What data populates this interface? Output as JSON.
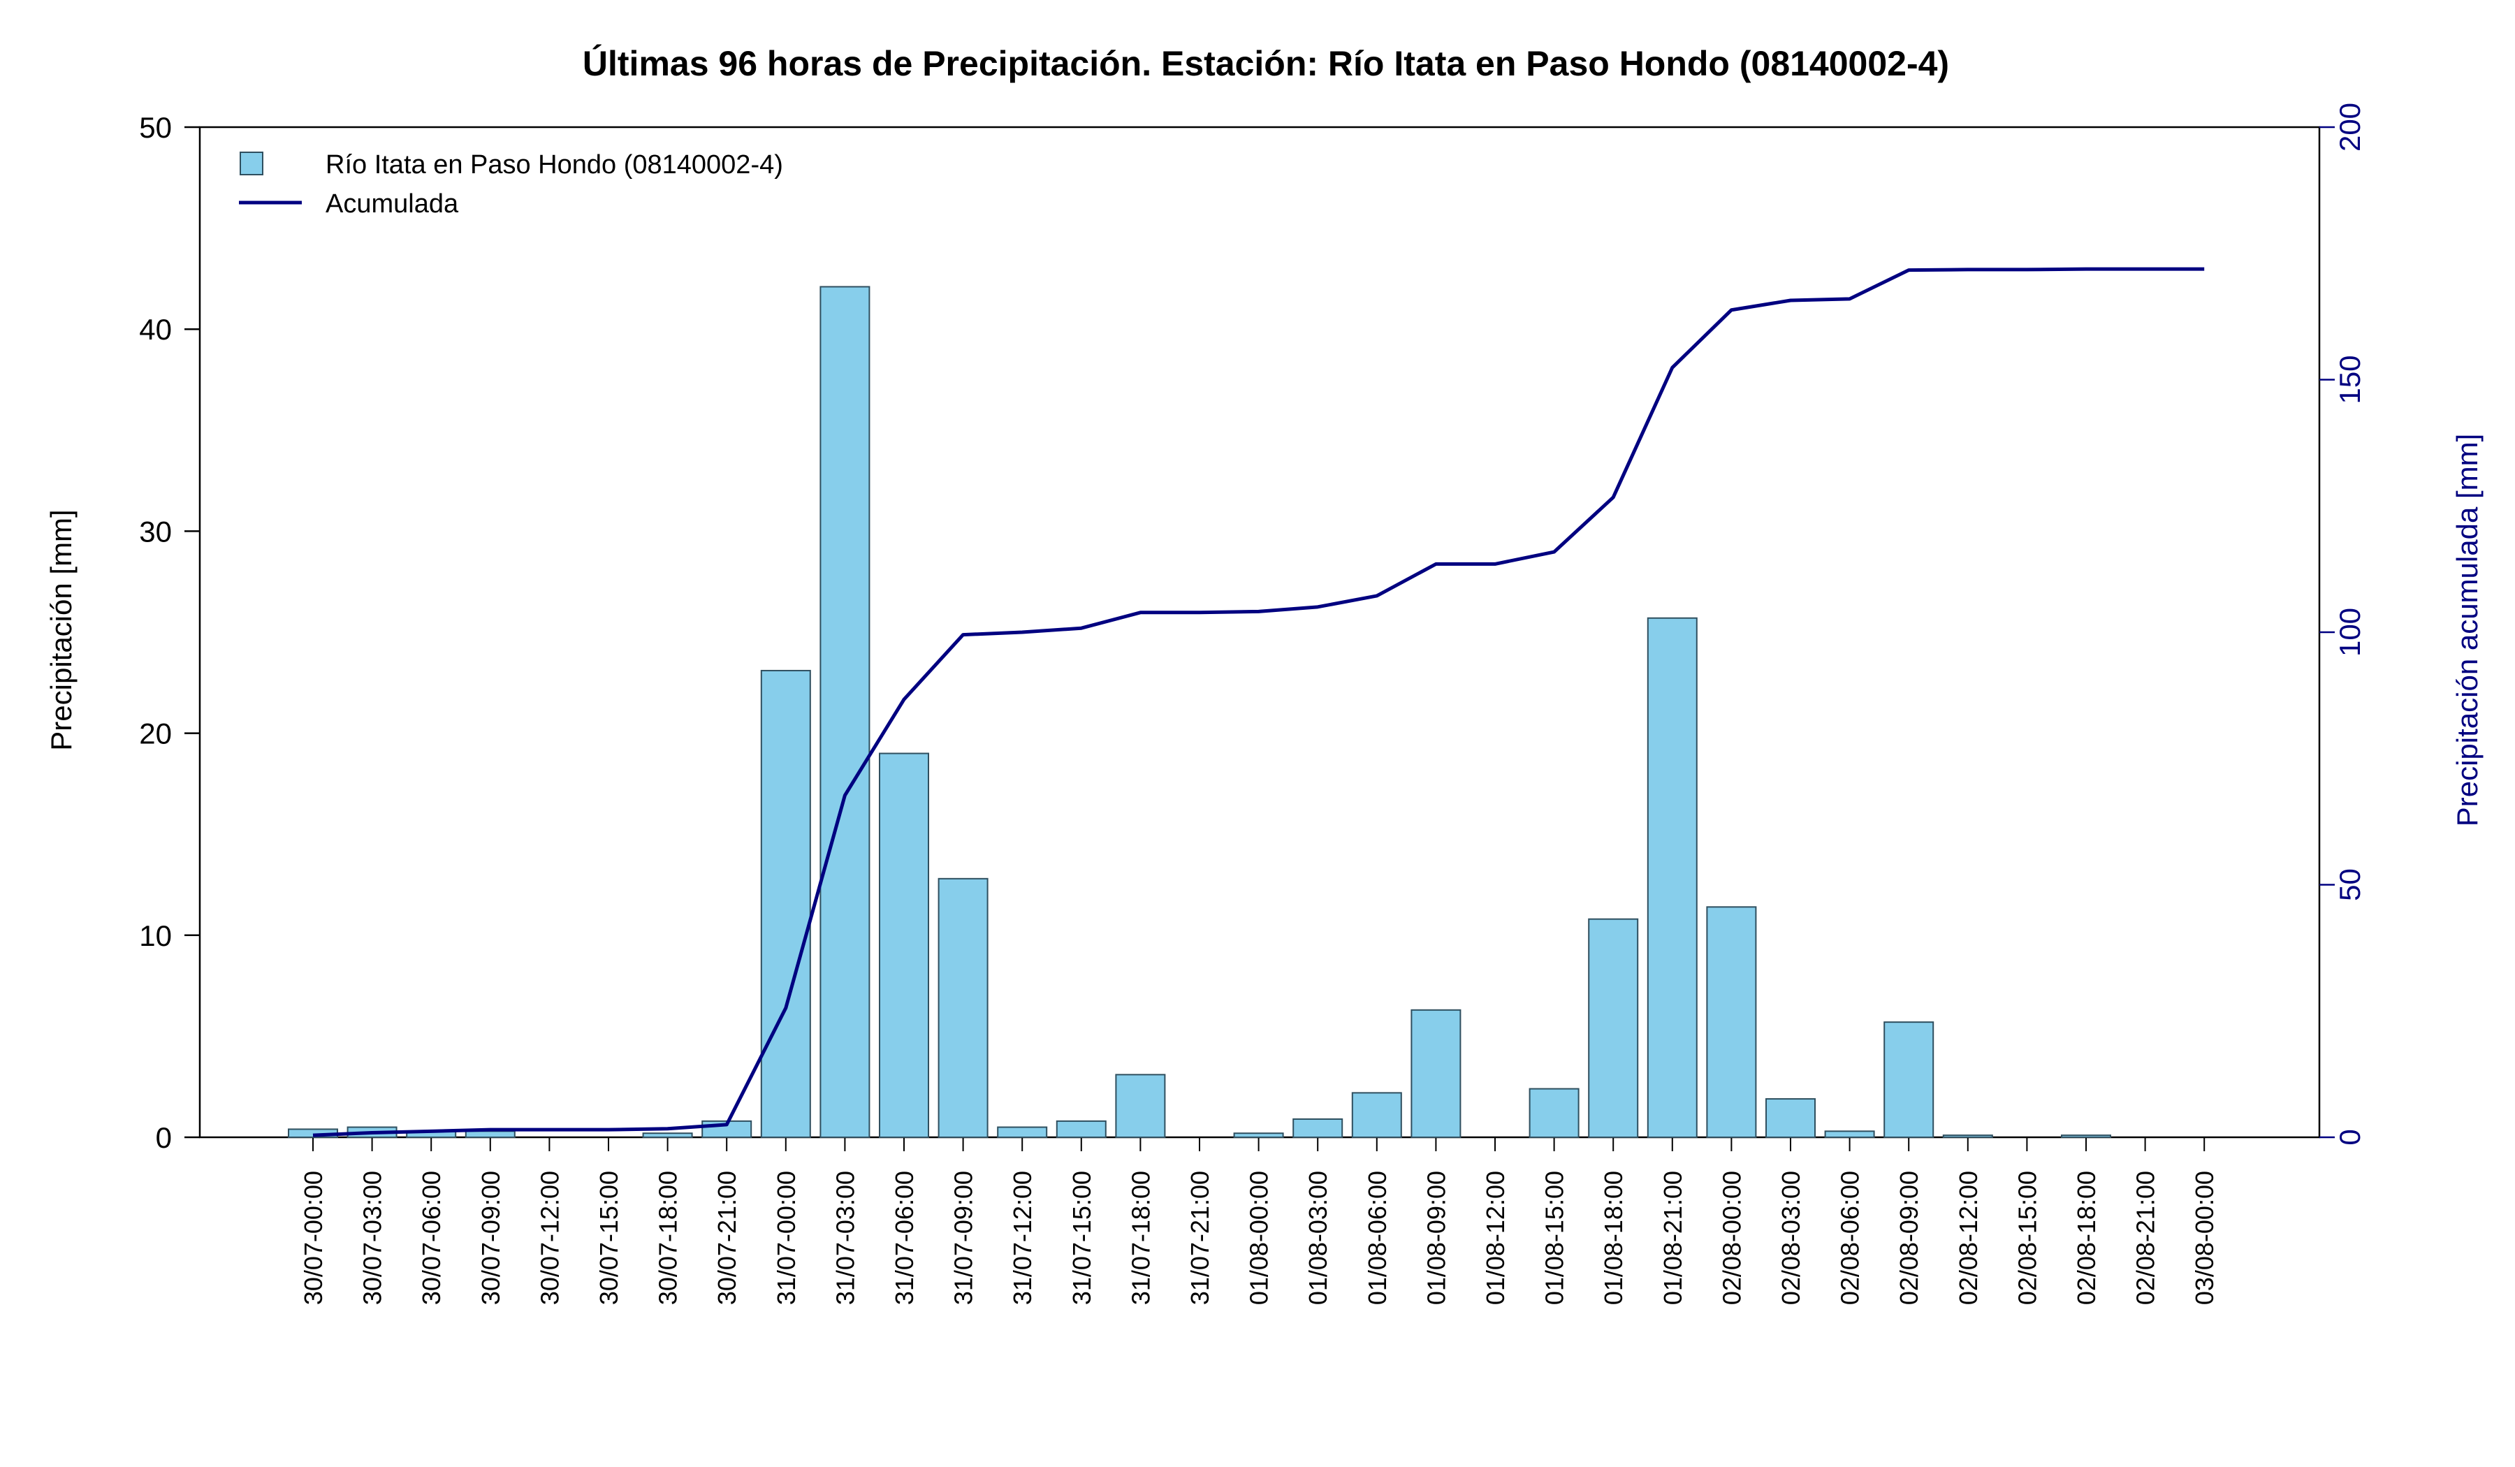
{
  "chart_data": {
    "type": "bar",
    "title": "Últimas 96 horas de Precipitación. Estación: Río Itata en Paso Hondo (08140002-4)",
    "xlabel": "",
    "ylabel": "Precipitación [mm]",
    "y2label": "Precipitación acumulada [mm]",
    "ylim": [
      0,
      50
    ],
    "y2lim": [
      0,
      200
    ],
    "yticks": [
      "0",
      "10",
      "20",
      "30",
      "40",
      "50"
    ],
    "y2ticks": [
      "0",
      "50",
      "100",
      "150",
      "200"
    ],
    "legend_position": "top-left",
    "grid": false,
    "colors": {
      "bar": "#87ceeb",
      "bar_border": "#2f4f5f",
      "line": "#000080",
      "axis": "#000000",
      "axis2": "#000080"
    },
    "categories": [
      "30/07-00:00",
      "30/07-03:00",
      "30/07-06:00",
      "30/07-09:00",
      "30/07-12:00",
      "30/07-15:00",
      "30/07-18:00",
      "30/07-21:00",
      "31/07-00:00",
      "31/07-03:00",
      "31/07-06:00",
      "31/07-09:00",
      "31/07-12:00",
      "31/07-15:00",
      "31/07-18:00",
      "31/07-21:00",
      "01/08-00:00",
      "01/08-03:00",
      "01/08-06:00",
      "01/08-09:00",
      "01/08-12:00",
      "01/08-15:00",
      "01/08-18:00",
      "01/08-21:00",
      "02/08-00:00",
      "02/08-03:00",
      "02/08-06:00",
      "02/08-09:00",
      "02/08-12:00",
      "02/08-15:00",
      "02/08-18:00",
      "02/08-21:00",
      "03/08-00:00"
    ],
    "series": [
      {
        "name": "Río Itata en Paso Hondo (08140002-4)",
        "kind": "bar",
        "axis": "left",
        "values": [
          0.4,
          0.5,
          0.3,
          0.3,
          0,
          0,
          0.2,
          0.8,
          23.1,
          42.1,
          19.0,
          12.8,
          0.5,
          0.8,
          3.1,
          0,
          0.2,
          0.9,
          2.2,
          6.3,
          0,
          2.4,
          10.8,
          25.7,
          11.4,
          1.9,
          0.3,
          5.7,
          0.1,
          0,
          0.1,
          0,
          0
        ]
      },
      {
        "name": "Acumulada",
        "kind": "line",
        "axis": "right",
        "values": [
          0.4,
          0.9,
          1.2,
          1.5,
          1.5,
          1.5,
          1.7,
          2.5,
          25.6,
          67.7,
          86.7,
          99.5,
          100.0,
          100.8,
          103.9,
          103.9,
          104.1,
          105.0,
          107.2,
          113.5,
          113.5,
          115.9,
          126.7,
          152.4,
          163.8,
          165.7,
          166.0,
          171.7,
          171.8,
          171.8,
          171.9,
          171.9,
          171.9
        ]
      }
    ]
  }
}
